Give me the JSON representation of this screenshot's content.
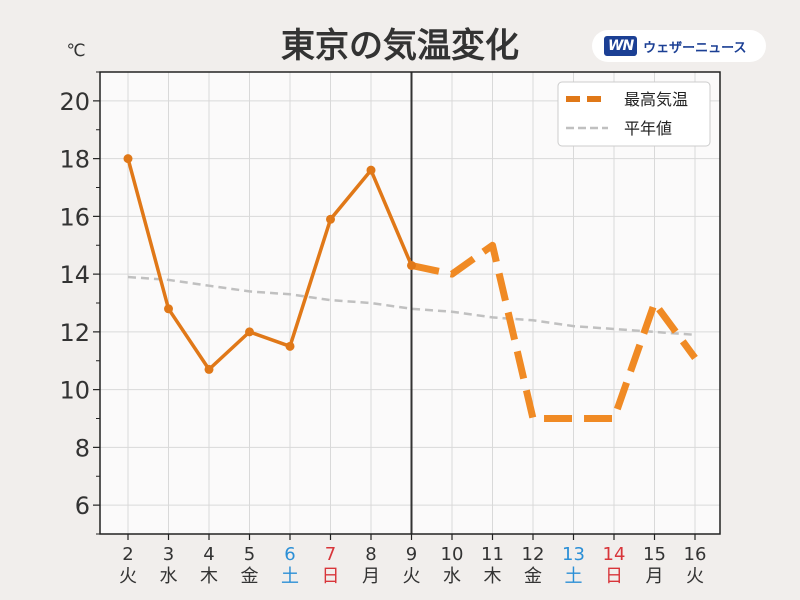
{
  "colors": {
    "background": "#f1eeec",
    "plot_background": "#fbfafa",
    "grid": "#d9d9d9",
    "series_main": "#e07818",
    "series_avg": "#c0c0c0",
    "today_line": "#333333",
    "weekday_text": "#333333",
    "saturday_text": "#2b8fd6",
    "sunday_text": "#d8353a",
    "logo_blue": "#1b3f94"
  },
  "logo": {
    "mark": "WN",
    "text": "ウェザーニュース"
  },
  "chart_data": {
    "type": "line",
    "title": "東京の気温変化",
    "ylabel": "℃",
    "ylim": [
      5,
      21
    ],
    "yticks": [
      6,
      8,
      10,
      12,
      14,
      16,
      18,
      20
    ],
    "grid": true,
    "legend_position": "top-right",
    "categories": [
      "2",
      "3",
      "4",
      "5",
      "6",
      "7",
      "8",
      "9",
      "10",
      "11",
      "12",
      "13",
      "14",
      "15",
      "16"
    ],
    "weekdays": [
      {
        "label": "火",
        "type": "weekday"
      },
      {
        "label": "水",
        "type": "weekday"
      },
      {
        "label": "木",
        "type": "weekday"
      },
      {
        "label": "金",
        "type": "weekday"
      },
      {
        "label": "土",
        "type": "saturday"
      },
      {
        "label": "日",
        "type": "sunday"
      },
      {
        "label": "月",
        "type": "weekday"
      },
      {
        "label": "火",
        "type": "weekday"
      },
      {
        "label": "水",
        "type": "weekday"
      },
      {
        "label": "木",
        "type": "weekday"
      },
      {
        "label": "金",
        "type": "weekday"
      },
      {
        "label": "土",
        "type": "saturday"
      },
      {
        "label": "日",
        "type": "sunday"
      },
      {
        "label": "月",
        "type": "weekday"
      },
      {
        "label": "火",
        "type": "weekday"
      }
    ],
    "today": "9",
    "series": [
      {
        "name": "最高気温",
        "observed_values": [
          18.0,
          12.8,
          10.7,
          12.0,
          11.5,
          15.9,
          17.6,
          14.3,
          null,
          null,
          null,
          null,
          null,
          null,
          null
        ],
        "forecast_values": [
          null,
          null,
          null,
          null,
          null,
          null,
          null,
          14.3,
          14.0,
          15.0,
          9.0,
          9.0,
          9.0,
          13.0,
          11.1
        ]
      },
      {
        "name": "平年値",
        "values": [
          13.9,
          13.8,
          13.6,
          13.4,
          13.3,
          13.1,
          13.0,
          12.8,
          12.7,
          12.5,
          12.4,
          12.2,
          12.1,
          12.0,
          11.9
        ]
      }
    ]
  }
}
